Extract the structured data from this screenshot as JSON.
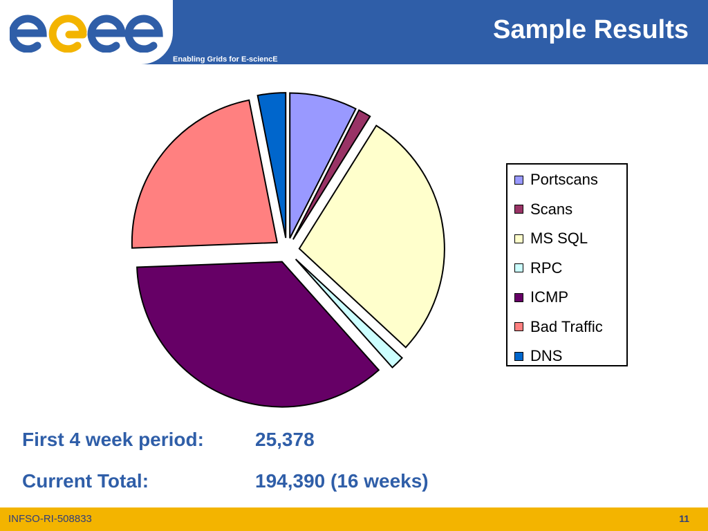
{
  "header": {
    "logo_text": "egee",
    "tagline": "Enabling Grids for E-sciencE",
    "title": "Sample Results"
  },
  "chart_data": {
    "type": "pie",
    "categories": [
      "Portscans",
      "Scans",
      "MS SQL",
      "RPC",
      "ICMP",
      "Bad Traffic",
      "DNS"
    ],
    "values": [
      7.5,
      1.4,
      28.0,
      1.5,
      36.0,
      22.5,
      3.1
    ],
    "colors": [
      "#9999ff",
      "#993366",
      "#ffffcc",
      "#ccffff",
      "#660066",
      "#ff8080",
      "#0066cc"
    ],
    "legend": "right",
    "exploded": true
  },
  "stats": {
    "first_label": "First 4 week period:",
    "first_value": "25,378",
    "total_label": "Current Total:",
    "total_value": "194,390 (16 weeks)"
  },
  "footer": {
    "left": "INFSO-RI-508833",
    "page": "11"
  }
}
